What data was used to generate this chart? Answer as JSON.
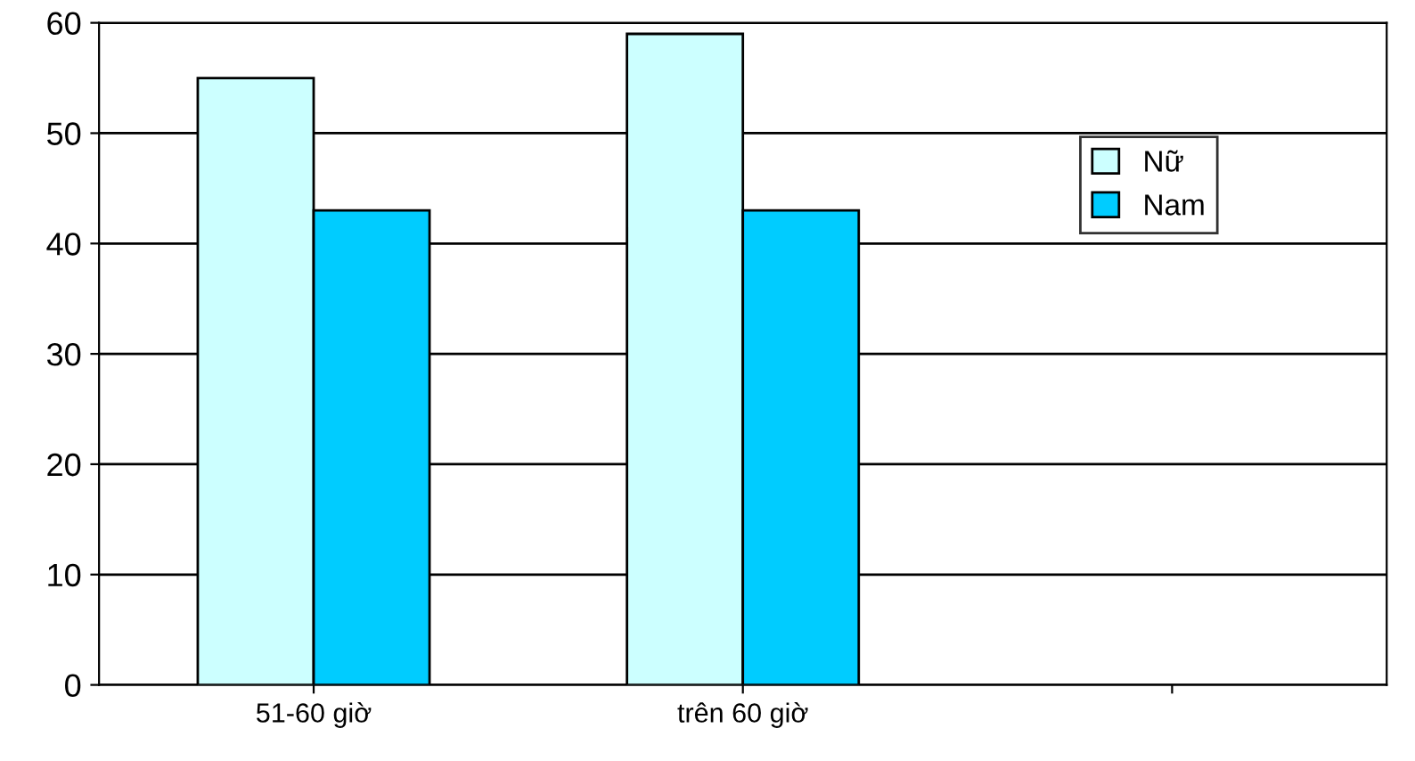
{
  "chart_data": {
    "type": "bar",
    "categories": [
      "51-60 giờ",
      "trên 60 giờ",
      null
    ],
    "series": [
      {
        "name": "Nữ",
        "color": "#ccffff",
        "values": [
          55,
          59,
          null
        ]
      },
      {
        "name": "Nam",
        "color": "#00ccff",
        "values": [
          43,
          43,
          null
        ]
      }
    ],
    "ylim": [
      0,
      60
    ],
    "yticks": [
      0,
      10,
      20,
      30,
      40,
      50,
      60
    ],
    "grid": "y",
    "legend": "top right"
  }
}
